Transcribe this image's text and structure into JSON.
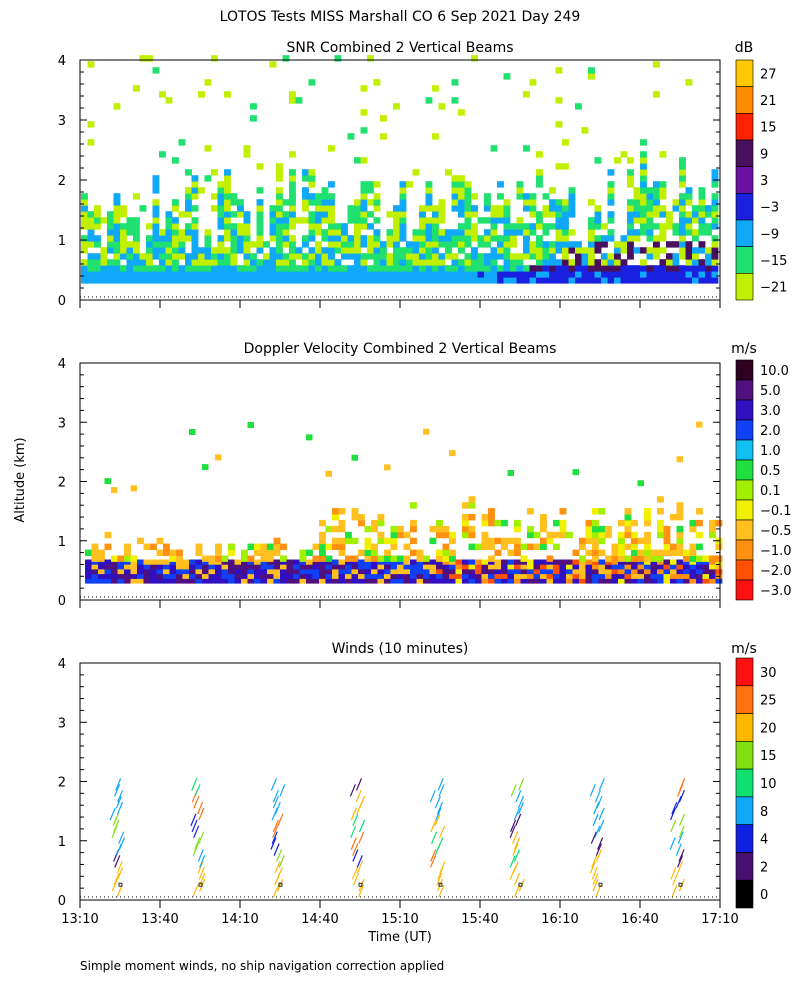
{
  "figure": {
    "title": "LOTOS Tests MISS Marshall CO    6 Sep 2021 Day 249",
    "footer": "Simple moment winds, no ship navigation correction applied",
    "ylabel": "Altitude (km)",
    "xlabel": "Time (UT)",
    "xticks": [
      "13:10",
      "13:40",
      "14:10",
      "14:40",
      "15:10",
      "15:40",
      "16:10",
      "16:40",
      "17:10"
    ],
    "yticks": [
      "0",
      "1",
      "2",
      "3",
      "4"
    ]
  },
  "chart_data": [
    {
      "type": "heatmap",
      "title": "SNR Combined 2 Vertical Beams",
      "colorbar_unit": "dB",
      "colorbar_labels": [
        "27",
        "21",
        "15",
        "9",
        "3",
        "−3",
        "−9",
        "−15",
        "−21"
      ],
      "colorbar_colors": [
        "#ffc800",
        "#ff8c00",
        "#ff2200",
        "#4a1060",
        "#6a10a0",
        "#1a20e0",
        "#10a8f8",
        "#20e070",
        "#c0f000"
      ],
      "ylim": [
        0,
        4
      ],
      "xlim": [
        "13:10",
        "17:10"
      ],
      "description_levels": "low altitude (0.3-0.8 km) mostly -9 to 3 dB, strong (3-15 dB) after 16:00; scattered weak echoes up to 4 km"
    },
    {
      "type": "heatmap",
      "title": "Doppler Velocity Combined 2 Vertical Beams",
      "colorbar_unit": "m/s",
      "colorbar_labels": [
        "10.0",
        "5.0",
        "3.0",
        "2.0",
        "1.0",
        "0.5",
        "0.1",
        "−0.1",
        "−0.5",
        "−1.0",
        "−2.0",
        "−3.0"
      ],
      "colorbar_colors": [
        "#300020",
        "#501080",
        "#3010c0",
        "#1040f8",
        "#10c0f0",
        "#20e040",
        "#a0f000",
        "#f0f000",
        "#ffc020",
        "#ff9010",
        "#ff5000",
        "#ff1010"
      ],
      "ylim": [
        0,
        4
      ],
      "xlim": [
        "13:10",
        "17:10"
      ]
    },
    {
      "type": "scatter",
      "title": "Winds (10 minutes)",
      "colorbar_unit": "m/s",
      "colorbar_labels": [
        "30",
        "25",
        "20",
        "15",
        "10",
        "8",
        "4",
        "2",
        "0"
      ],
      "colorbar_colors": [
        "#ff1010",
        "#ff7010",
        "#ffb800",
        "#80e010",
        "#10e070",
        "#10a8f8",
        "#1020e0",
        "#4a1070",
        "#000000"
      ],
      "ylim": [
        0,
        4
      ],
      "profile_times": [
        "13:25",
        "13:55",
        "14:25",
        "14:55",
        "15:25",
        "15:55",
        "16:25",
        "16:55"
      ]
    }
  ]
}
